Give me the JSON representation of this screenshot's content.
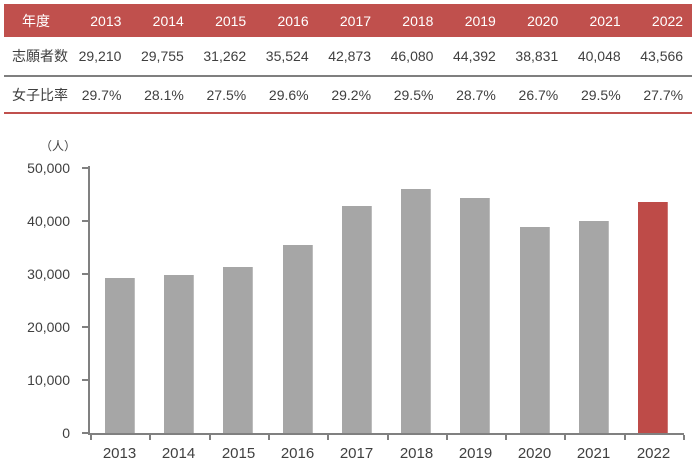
{
  "table": {
    "header_label": "年度",
    "years": [
      "2013",
      "2014",
      "2015",
      "2016",
      "2017",
      "2018",
      "2019",
      "2020",
      "2021",
      "2022"
    ],
    "rows": [
      {
        "name": "applicants",
        "label": "志願者数",
        "values": [
          "29,210",
          "29,755",
          "31,262",
          "35,524",
          "42,873",
          "46,080",
          "44,392",
          "38,831",
          "40,048",
          "43,566"
        ]
      },
      {
        "name": "female-ratio",
        "label": "女子比率",
        "values": [
          "29.7%",
          "28.1%",
          "27.5%",
          "29.6%",
          "29.2%",
          "29.5%",
          "28.7%",
          "26.7%",
          "29.5%",
          "27.7%"
        ]
      }
    ]
  },
  "chart": {
    "unit_label": "（人）",
    "y_tick_labels": [
      "0",
      "10,000",
      "20,000",
      "30,000",
      "40,000",
      "50,000"
    ]
  },
  "chart_data": {
    "type": "bar",
    "categories": [
      "2013",
      "2014",
      "2015",
      "2016",
      "2017",
      "2018",
      "2019",
      "2020",
      "2021",
      "2022"
    ],
    "values": [
      29210,
      29755,
      31262,
      35524,
      42873,
      46080,
      44392,
      38831,
      40048,
      43566
    ],
    "title": "",
    "xlabel": "",
    "ylabel": "（人）",
    "ylim": [
      0,
      50000
    ],
    "y_tick_step": 10000,
    "grid": false,
    "legend": "none",
    "bar_color": "#A6A6A6",
    "highlight_index": 9,
    "highlight_color": "#BE4B48"
  },
  "colors": {
    "header_bg": "#C0504D",
    "header_text": "#FFFFFF",
    "body_text": "#3F3F3F",
    "row_divider": "#7F7F7F",
    "table_bottom_border": "#C0504D",
    "axis": "#808080",
    "axis_label_text": "#404040"
  }
}
